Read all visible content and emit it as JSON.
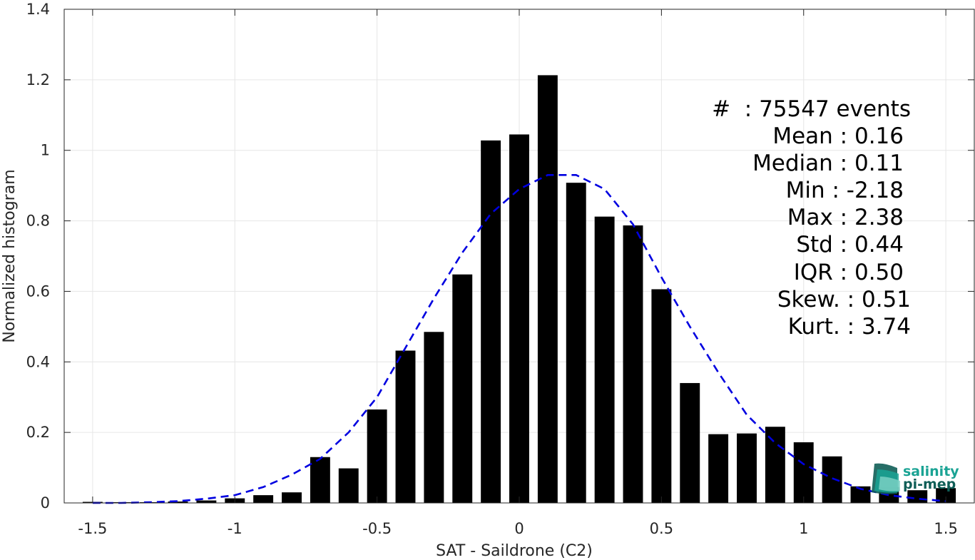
{
  "colors": {
    "bar": "#000000",
    "fit_line": "#0000e0",
    "grid": "#e6e6e6",
    "axis": "#262626",
    "logo_teal": "#1aa394",
    "logo_dark": "#0f5e57"
  },
  "stats": {
    "count": "#  : 75547 events",
    "mean": "Mean : 0.16",
    "median": "Median : 0.11",
    "min": "Min : -2.18",
    "max": "Max : 2.38",
    "std": "Std : 0.44",
    "iqr": "IQR : 0.50",
    "skew": "Skew. : 0.51",
    "kurt": "Kurt. : 3.74"
  },
  "logo": {
    "line1": "salinity",
    "line2": "pi-mep",
    "icon": "wave-logo-icon"
  },
  "chart_data": {
    "type": "bar",
    "xlabel": "SAT - Saildrone (C2)",
    "ylabel": "Normalized histogram",
    "xlim": [
      -1.6,
      1.6
    ],
    "ylim": [
      0,
      1.4
    ],
    "xticks": [
      -1.5,
      -1,
      -0.5,
      0,
      0.5,
      1,
      1.5
    ],
    "xtick_labels": [
      "-1.5",
      "-1",
      "-0.5",
      "0",
      "0.5",
      "1",
      "1.5"
    ],
    "yticks": [
      0,
      0.2,
      0.4,
      0.6,
      0.8,
      1,
      1.2,
      1.4
    ],
    "ytick_labels": [
      "0",
      "0.2",
      "0.4",
      "0.6",
      "0.8",
      "1",
      "1.2",
      "1.4"
    ],
    "grid": true,
    "bin_width": 0.1,
    "series": [
      {
        "type": "bar",
        "x": [
          -1.5,
          -1.4,
          -1.3,
          -1.2,
          -1.1,
          -1.0,
          -0.9,
          -0.8,
          -0.7,
          -0.6,
          -0.5,
          -0.4,
          -0.3,
          -0.2,
          -0.1,
          0.0,
          0.1,
          0.2,
          0.3,
          0.4,
          0.5,
          0.6,
          0.7,
          0.8,
          0.9,
          1.0,
          1.1,
          1.2,
          1.3,
          1.4,
          1.5
        ],
        "values": [
          0.003,
          0.002,
          0.002,
          0.004,
          0.007,
          0.013,
          0.022,
          0.03,
          0.13,
          0.098,
          0.265,
          0.432,
          0.485,
          0.648,
          1.028,
          1.045,
          1.213,
          0.908,
          0.812,
          0.787,
          0.606,
          0.34,
          0.195,
          0.197,
          0.216,
          0.172,
          0.132,
          0.047,
          0.045,
          0.036,
          0.042
        ]
      },
      {
        "type": "line",
        "style": "dashed",
        "x": [
          -1.5,
          -1.4,
          -1.3,
          -1.2,
          -1.1,
          -1.0,
          -0.9,
          -0.8,
          -0.7,
          -0.6,
          -0.5,
          -0.4,
          -0.3,
          -0.2,
          -0.1,
          0.0,
          0.1,
          0.2,
          0.3,
          0.4,
          0.5,
          0.6,
          0.7,
          0.8,
          0.9,
          1.0,
          1.1,
          1.2,
          1.3,
          1.4,
          1.5
        ],
        "values": [
          0.0,
          0.0,
          0.002,
          0.005,
          0.012,
          0.022,
          0.045,
          0.08,
          0.125,
          0.2,
          0.3,
          0.44,
          0.58,
          0.71,
          0.82,
          0.89,
          0.93,
          0.93,
          0.89,
          0.79,
          0.64,
          0.5,
          0.37,
          0.25,
          0.17,
          0.11,
          0.07,
          0.04,
          0.022,
          0.012,
          0.005
        ]
      }
    ]
  }
}
